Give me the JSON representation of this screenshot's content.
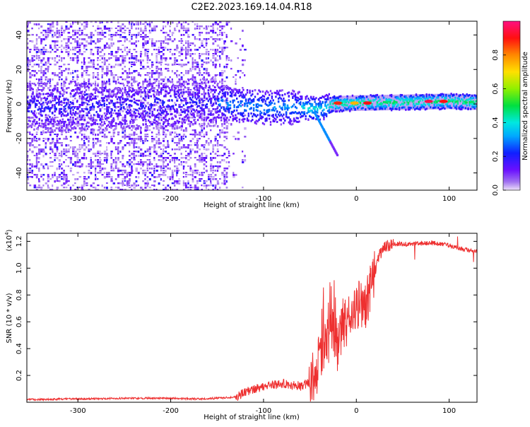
{
  "title": "C2E2.2023.169.14.04.R18",
  "chart_data": [
    {
      "type": "heatmap",
      "xlabel": "Height of straight line (km)",
      "ylabel": "Frequency (Hz)",
      "xlim": [
        -355,
        130
      ],
      "ylim": [
        -50,
        48
      ],
      "x_ticks": [
        -300,
        -200,
        -100,
        0,
        100
      ],
      "x_tick_labels": [
        "-300",
        "-200",
        "-100",
        "0",
        "100"
      ],
      "y_ticks": [
        -40,
        -20,
        0,
        20,
        40
      ],
      "y_tick_labels": [
        "-40",
        "-20",
        "0",
        "20",
        "40"
      ],
      "ridge": [
        {
          "x": -350,
          "f": -2
        },
        {
          "x": -250,
          "f": -1
        },
        {
          "x": -160,
          "f": 1
        },
        {
          "x": -100,
          "f": -2
        },
        {
          "x": -60,
          "f": -2
        },
        {
          "x": -40,
          "f": -3
        },
        {
          "x": -25,
          "f": 0
        },
        {
          "x": 0,
          "f": 0.5
        },
        {
          "x": 50,
          "f": 1
        },
        {
          "x": 100,
          "f": 1.5
        },
        {
          "x": 130,
          "f": 1
        }
      ],
      "branch": [
        {
          "x": -45,
          "f": -5
        },
        {
          "x": -35,
          "f": -15
        },
        {
          "x": -28,
          "f": -22
        },
        {
          "x": -20,
          "f": -30
        }
      ],
      "hotspots": [
        {
          "x": -20,
          "f": 0.5,
          "v": 0.88
        },
        {
          "x": -2,
          "f": 0.5,
          "v": 0.75
        },
        {
          "x": 12,
          "f": 0.5,
          "v": 0.9
        },
        {
          "x": 78,
          "f": 1.5,
          "v": 0.95
        },
        {
          "x": 94,
          "f": 1.5,
          "v": 0.9
        }
      ],
      "colorbar": {
        "label": "Normalized spectral amplitude",
        "range": [
          0,
          1
        ],
        "ticks": [
          0.0,
          0.2,
          0.4,
          0.6,
          0.8
        ],
        "tick_labels": [
          "0.0",
          "0.2",
          "0.4",
          "0.6",
          "0.8"
        ]
      },
      "grid": false
    },
    {
      "type": "line",
      "xlabel": "Height of straight line (km)",
      "ylabel": "SNR (10 * v/v)",
      "y_exponent": "(x10",
      "y_exponent_power": "4",
      "y_exponent_close": ")",
      "xlim": [
        -355,
        130
      ],
      "ylim": [
        0,
        12600
      ],
      "x_ticks": [
        -300,
        -200,
        -100,
        0,
        100
      ],
      "x_tick_labels": [
        "-300",
        "-200",
        "-100",
        "0",
        "100"
      ],
      "y_ticks": [
        2000,
        4000,
        6000,
        8000,
        10000,
        12000
      ],
      "y_tick_labels": [
        "0.2",
        "0.4",
        "0.6",
        "0.8",
        "1.0",
        "1.2"
      ],
      "series": [
        {
          "color": "#ee3030",
          "x": [
            -355,
            -300,
            -250,
            -200,
            -170,
            -150,
            -130,
            -120,
            -110,
            -100,
            -90,
            -80,
            -70,
            -60,
            -50,
            -45,
            -40,
            -35,
            -30,
            -25,
            -20,
            -15,
            -10,
            -5,
            0,
            5,
            10,
            15,
            20,
            25,
            30,
            35,
            40,
            60,
            80,
            100,
            115,
            130
          ],
          "y": [
            200,
            250,
            300,
            300,
            250,
            300,
            400,
            700,
            1000,
            1200,
            1300,
            1400,
            1300,
            1200,
            1500,
            2000,
            3000,
            4000,
            4500,
            5500,
            4000,
            5500,
            6000,
            6500,
            7000,
            7500,
            7000,
            8500,
            9800,
            11000,
            11500,
            11700,
            11800,
            11800,
            11900,
            11700,
            11400,
            11200
          ]
        }
      ],
      "grid": false
    }
  ]
}
